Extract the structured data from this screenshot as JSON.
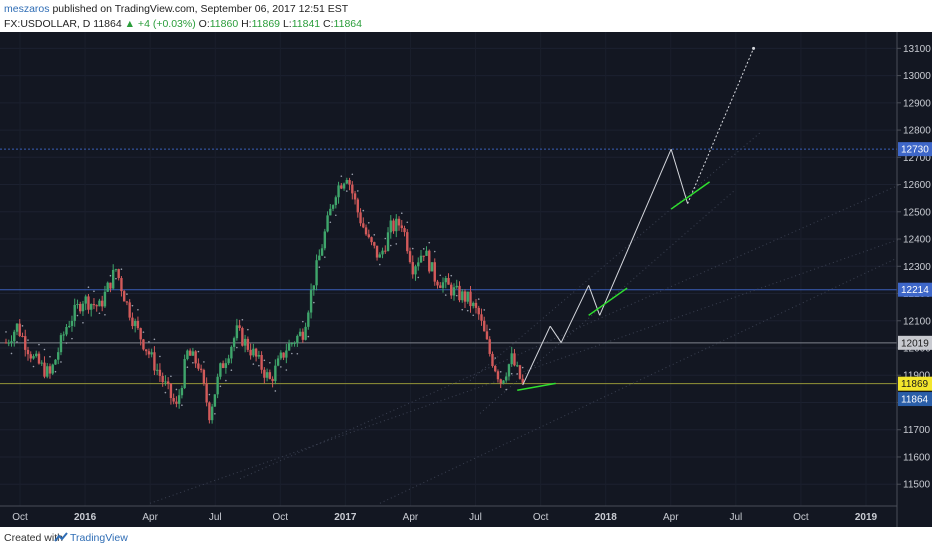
{
  "header": {
    "author": "meszaros",
    "published_text": "published on TradingView.com, September 06, 2017 12:51 EST",
    "symbol": "FX:USDOLLAR, D",
    "last": "11864",
    "change": "▲ +4 (+0.03%)",
    "open_label": "O:",
    "open": "11860",
    "high_label": "H:",
    "high": "11869",
    "low_label": "L:",
    "low": "11841",
    "close_label": "C:",
    "close": "11864"
  },
  "footer": {
    "created_with": "Created with",
    "brand": "TradingView"
  },
  "colors": {
    "background": "#131722",
    "bull": "#3fa56b",
    "bear": "#d25a5a",
    "level_blue": "#3e67c9",
    "level_yellow": "#a3a33a",
    "level_gray": "#8a8e98",
    "green_line": "#2fe02f",
    "projection": "#d6d8de"
  },
  "chart_data": {
    "type": "candlestick",
    "x_ticks": [
      "Oct",
      "2016",
      "Apr",
      "Jul",
      "Oct",
      "2017",
      "Apr",
      "Jul",
      "Oct",
      "2018",
      "Apr",
      "Jul",
      "Oct",
      "2019"
    ],
    "y_ticks": [
      11500,
      11600,
      11700,
      11800,
      11900,
      12000,
      12100,
      12200,
      12300,
      12400,
      12500,
      12600,
      12700,
      12800,
      12900,
      13000,
      13100
    ],
    "ylim": [
      11420,
      13160
    ],
    "price_tags": [
      {
        "value": 12730,
        "label": "12730",
        "style": "blue"
      },
      {
        "value": 12214,
        "label": "12214",
        "style": "blue"
      },
      {
        "value": 12019,
        "label": "12019",
        "style": "gray"
      },
      {
        "value": 11869,
        "label": "11869",
        "style": "yellow"
      },
      {
        "value": 11864,
        "label": "11864",
        "style": "last"
      }
    ],
    "horizontal_levels": [
      12730,
      12214,
      12019,
      11869
    ],
    "price_path": [
      {
        "t": 0,
        "v": 12020
      },
      {
        "t": 4,
        "v": 12080
      },
      {
        "t": 10,
        "v": 11960
      },
      {
        "t": 16,
        "v": 11900
      },
      {
        "t": 22,
        "v": 12080
      },
      {
        "t": 28,
        "v": 12180
      },
      {
        "t": 34,
        "v": 12150
      },
      {
        "t": 40,
        "v": 12290
      },
      {
        "t": 44,
        "v": 12160
      },
      {
        "t": 48,
        "v": 12060
      },
      {
        "t": 54,
        "v": 11940
      },
      {
        "t": 58,
        "v": 11860
      },
      {
        "t": 62,
        "v": 11780
      },
      {
        "t": 66,
        "v": 11980
      },
      {
        "t": 70,
        "v": 11940
      },
      {
        "t": 74,
        "v": 11760
      },
      {
        "t": 78,
        "v": 11920
      },
      {
        "t": 84,
        "v": 12060
      },
      {
        "t": 90,
        "v": 11980
      },
      {
        "t": 96,
        "v": 11880
      },
      {
        "t": 102,
        "v": 12000
      },
      {
        "t": 108,
        "v": 12060
      },
      {
        "t": 112,
        "v": 12250
      },
      {
        "t": 116,
        "v": 12420
      },
      {
        "t": 120,
        "v": 12580
      },
      {
        "t": 124,
        "v": 12640
      },
      {
        "t": 128,
        "v": 12500
      },
      {
        "t": 132,
        "v": 12390
      },
      {
        "t": 136,
        "v": 12330
      },
      {
        "t": 140,
        "v": 12440
      },
      {
        "t": 144,
        "v": 12460
      },
      {
        "t": 148,
        "v": 12300
      },
      {
        "t": 152,
        "v": 12360
      },
      {
        "t": 156,
        "v": 12260
      },
      {
        "t": 160,
        "v": 12230
      },
      {
        "t": 164,
        "v": 12200
      },
      {
        "t": 168,
        "v": 12180
      },
      {
        "t": 172,
        "v": 12120
      },
      {
        "t": 176,
        "v": 11980
      },
      {
        "t": 180,
        "v": 11880
      },
      {
        "t": 184,
        "v": 11960
      },
      {
        "t": 188,
        "v": 11864
      }
    ],
    "time_range": [
      0,
      322
    ],
    "projection_path": [
      {
        "t": 188,
        "v": 11864
      },
      {
        "t": 198,
        "v": 12080
      },
      {
        "t": 202,
        "v": 12020
      },
      {
        "t": 212,
        "v": 12230
      },
      {
        "t": 216,
        "v": 12120
      },
      {
        "t": 242,
        "v": 12730
      },
      {
        "t": 248,
        "v": 12530
      },
      {
        "t": 272,
        "v": 13100
      }
    ],
    "green_segments": [
      [
        {
          "t": 186,
          "v": 11845
        },
        {
          "t": 200,
          "v": 11870
        }
      ],
      [
        {
          "t": 212,
          "v": 12120
        },
        {
          "t": 226,
          "v": 12220
        }
      ],
      [
        {
          "t": 242,
          "v": 12510
        },
        {
          "t": 256,
          "v": 12610
        }
      ]
    ]
  }
}
